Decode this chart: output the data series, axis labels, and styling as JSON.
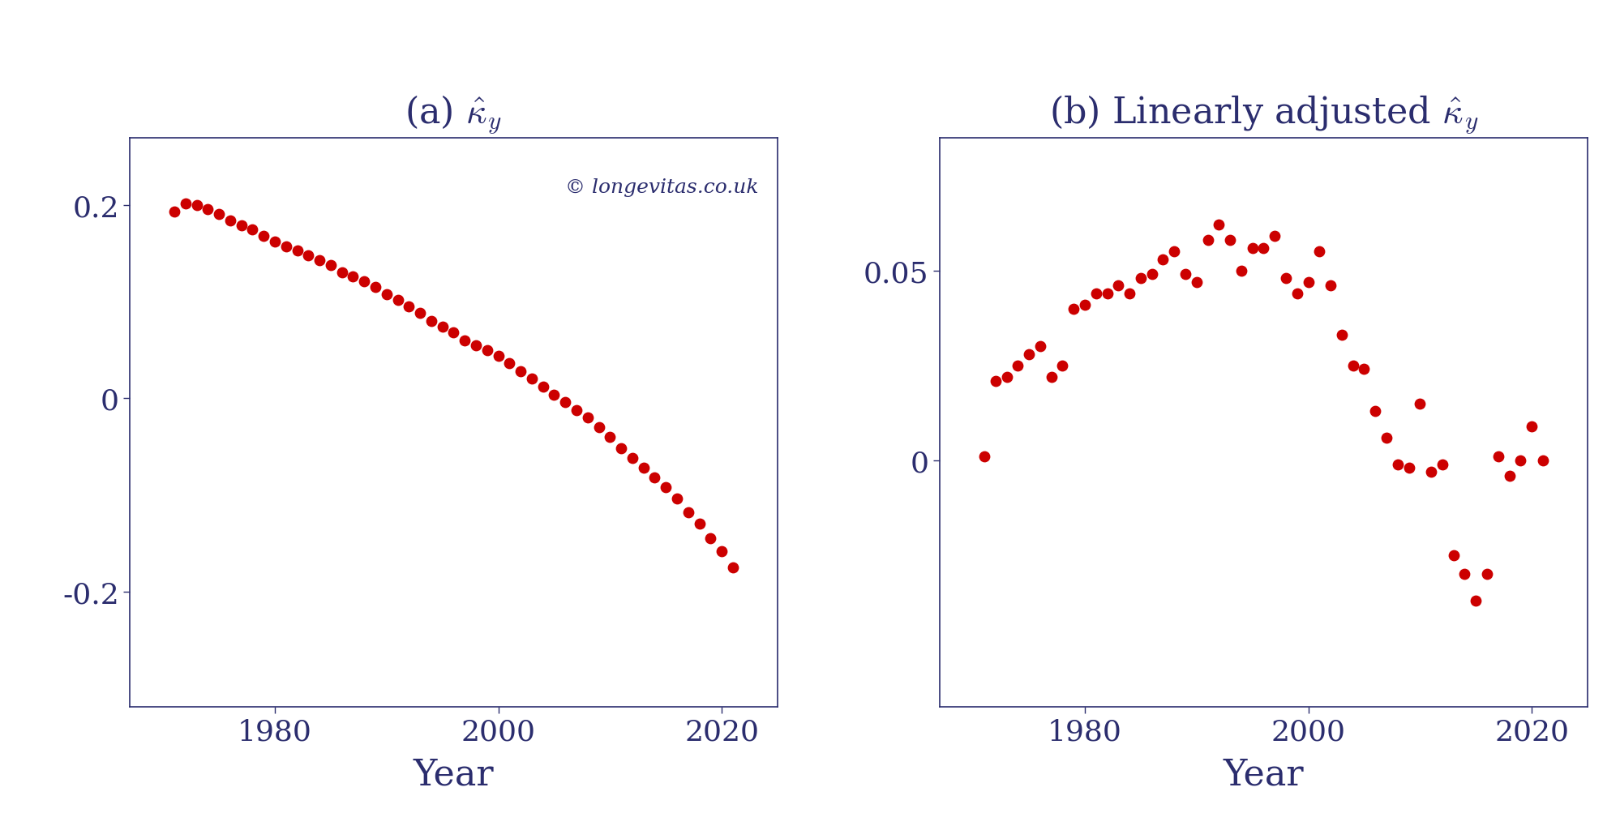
{
  "title_a": "(a) $\\hat{\\kappa}_y$",
  "title_b": "(b) Linearly adjusted $\\hat{\\kappa}_y$",
  "xlabel": "Year",
  "watermark": "© longevitas.co.uk",
  "text_color": "#2b2d6e",
  "dot_color": "#cc0000",
  "dot_size": 80,
  "title_fontsize": 32,
  "label_fontsize": 32,
  "tick_fontsize": 26,
  "watermark_fontsize": 18,
  "plot_a": {
    "years": [
      1971,
      1972,
      1973,
      1974,
      1975,
      1976,
      1977,
      1978,
      1979,
      1980,
      1981,
      1982,
      1983,
      1984,
      1985,
      1986,
      1987,
      1988,
      1989,
      1990,
      1991,
      1992,
      1993,
      1994,
      1995,
      1996,
      1997,
      1998,
      1999,
      2000,
      2001,
      2002,
      2003,
      2004,
      2005,
      2006,
      2007,
      2008,
      2009,
      2010,
      2011,
      2012,
      2013,
      2014,
      2015,
      2016,
      2017,
      2018,
      2019,
      2020,
      2021
    ],
    "values": [
      0.193,
      0.202,
      0.2,
      0.196,
      0.191,
      0.184,
      0.179,
      0.175,
      0.168,
      0.162,
      0.157,
      0.153,
      0.148,
      0.143,
      0.138,
      0.13,
      0.126,
      0.121,
      0.115,
      0.108,
      0.102,
      0.095,
      0.088,
      0.08,
      0.074,
      0.068,
      0.06,
      0.055,
      0.05,
      0.044,
      0.036,
      0.028,
      0.02,
      0.012,
      0.004,
      -0.004,
      -0.012,
      -0.02,
      -0.03,
      -0.04,
      -0.052,
      -0.062,
      -0.072,
      -0.082,
      -0.092,
      -0.104,
      -0.118,
      -0.13,
      -0.145,
      -0.158,
      -0.175
    ],
    "ylim": [
      -0.32,
      0.27
    ],
    "yticks": [
      -0.2,
      0,
      0.2
    ],
    "xlim": [
      1967,
      2025
    ],
    "xticks": [
      1980,
      2000,
      2020
    ]
  },
  "plot_b": {
    "years": [
      1971,
      1972,
      1973,
      1974,
      1975,
      1976,
      1977,
      1978,
      1979,
      1980,
      1981,
      1982,
      1983,
      1984,
      1985,
      1986,
      1987,
      1988,
      1989,
      1990,
      1991,
      1992,
      1993,
      1994,
      1995,
      1996,
      1997,
      1998,
      1999,
      2000,
      2001,
      2002,
      2003,
      2004,
      2005,
      2006,
      2007,
      2008,
      2009,
      2010,
      2011,
      2012,
      2013,
      2014,
      2015,
      2016,
      2017,
      2018,
      2019,
      2020,
      2021
    ],
    "values": [
      0.001,
      0.021,
      0.022,
      0.025,
      0.028,
      0.03,
      0.022,
      0.025,
      0.04,
      0.041,
      0.044,
      0.044,
      0.046,
      0.044,
      0.048,
      0.049,
      0.053,
      0.055,
      0.049,
      0.047,
      0.058,
      0.062,
      0.058,
      0.05,
      0.056,
      0.056,
      0.059,
      0.048,
      0.044,
      0.047,
      0.055,
      0.046,
      0.033,
      0.025,
      0.024,
      0.013,
      0.006,
      -0.001,
      -0.002,
      0.015,
      -0.003,
      -0.001,
      -0.025,
      -0.03,
      -0.037,
      -0.03,
      0.001,
      -0.004,
      0.0,
      0.009,
      0.0
    ],
    "ylim": [
      -0.065,
      0.085
    ],
    "yticks": [
      0,
      0.05
    ],
    "xlim": [
      1967,
      2025
    ],
    "xticks": [
      1980,
      2000,
      2020
    ]
  }
}
